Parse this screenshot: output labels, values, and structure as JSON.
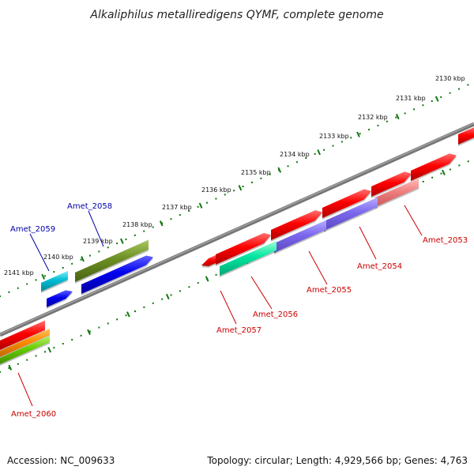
{
  "title": "Alkaliphilus metalliredigens QYMF, complete genome",
  "accession": "Accession: NC_009633",
  "topology": "Topology: circular; Length: 4,929,566 bp; Genes: 4,763",
  "ticks": [
    "2130 kbp",
    "2131 kbp",
    "2132 kbp",
    "2133 kbp",
    "2134 kbp",
    "2135 kbp",
    "2136 kbp",
    "2137 kbp",
    "2138 kbp",
    "2139 kbp",
    "2140 kbp",
    "2141 kbp"
  ],
  "genes": [
    {
      "name": "Amet_2053",
      "color": "#cc0000"
    },
    {
      "name": "Amet_2054",
      "color": "#cc0000"
    },
    {
      "name": "Amet_2055",
      "color": "#cc0000"
    },
    {
      "name": "Amet_2056",
      "color": "#cc0000"
    },
    {
      "name": "Amet_2057",
      "color": "#cc0000"
    },
    {
      "name": "Amet_2058",
      "color": "#0000aa"
    },
    {
      "name": "Amet_2059",
      "color": "#0000aa"
    },
    {
      "name": "Amet_2060",
      "color": "#cc0000"
    }
  ],
  "colors": {
    "backbone": "#777777",
    "tick_dots": "#117711",
    "red_gene": "#ff0000",
    "blue_gene": "#0000ee",
    "olive_gene": "#6b8e23",
    "cyan_gene": "#00bcd4",
    "green_gene": "#00e6a0",
    "purple_gene": "#7b68ee",
    "pink_gene": "#f08080",
    "orange_gene": "#ff8c00",
    "lime_gene": "#66cc00"
  }
}
